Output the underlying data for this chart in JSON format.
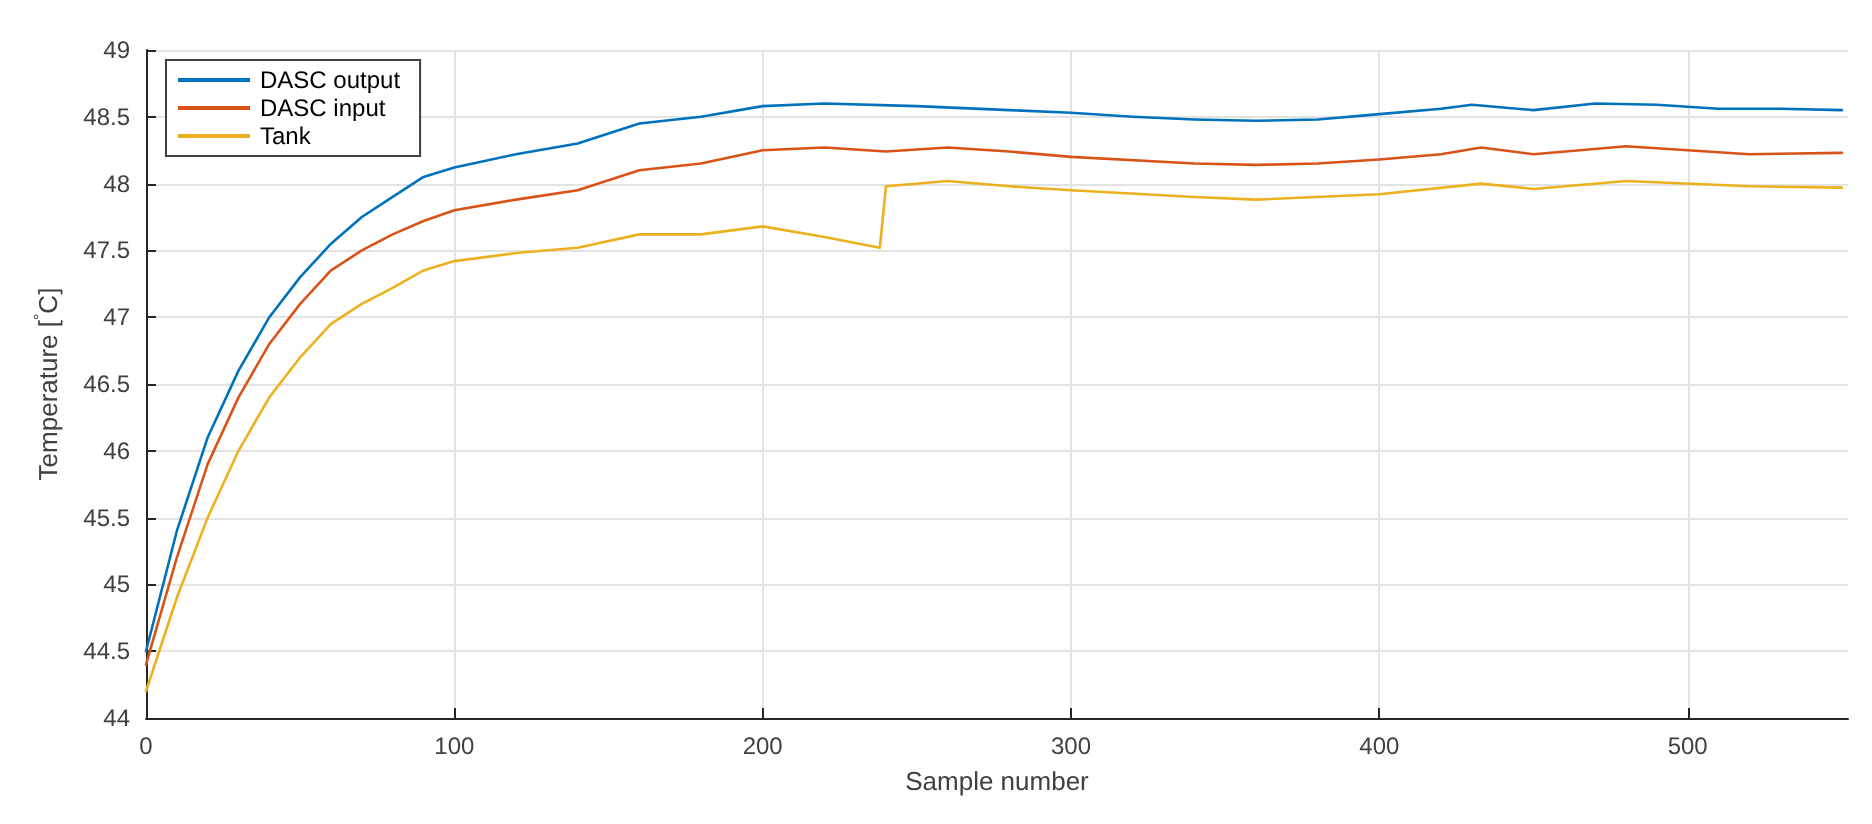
{
  "chart_data": {
    "type": "line",
    "xlabel": "Sample number",
    "ylabel": "Temperature [$^{°}$C]",
    "xlim": [
      0,
      552
    ],
    "xticks": [
      0,
      100,
      200,
      300,
      400,
      500
    ],
    "ylim": [
      44,
      49
    ],
    "yticks": [
      44,
      44.5,
      45,
      45.5,
      46,
      46.5,
      47,
      47.5,
      48,
      48.5,
      49
    ],
    "grid": true,
    "legend": "top left",
    "marker": "none",
    "line_style": "solid",
    "series": [
      {
        "name": "DASC output",
        "color": "#0072bd",
        "x": [
          0,
          10,
          20,
          30,
          40,
          50,
          60,
          70,
          80,
          90,
          100,
          120,
          140,
          160,
          180,
          200,
          220,
          250,
          280,
          300,
          320,
          340,
          360,
          380,
          400,
          420,
          430,
          450,
          470,
          490,
          510,
          530,
          550
        ],
        "values": [
          44.5,
          45.4,
          46.1,
          46.6,
          47.0,
          47.3,
          47.55,
          47.75,
          47.9,
          48.05,
          48.12,
          48.22,
          48.3,
          48.45,
          48.5,
          48.58,
          48.6,
          48.58,
          48.55,
          48.53,
          48.5,
          48.48,
          48.47,
          48.48,
          48.52,
          48.56,
          48.59,
          48.55,
          48.6,
          48.59,
          48.56,
          48.56,
          48.55
        ]
      },
      {
        "name": "DASC input",
        "color": "#d95319",
        "x": [
          0,
          10,
          20,
          30,
          40,
          50,
          60,
          70,
          80,
          90,
          100,
          120,
          140,
          160,
          180,
          200,
          220,
          240,
          260,
          280,
          300,
          340,
          360,
          380,
          400,
          420,
          433,
          450,
          480,
          500,
          520,
          550
        ],
        "values": [
          44.4,
          45.2,
          45.9,
          46.4,
          46.8,
          47.1,
          47.35,
          47.5,
          47.62,
          47.72,
          47.8,
          47.88,
          47.95,
          48.1,
          48.15,
          48.25,
          48.27,
          48.24,
          48.27,
          48.24,
          48.2,
          48.15,
          48.14,
          48.15,
          48.18,
          48.22,
          48.27,
          48.22,
          48.28,
          48.25,
          48.22,
          48.23
        ]
      },
      {
        "name": "Tank",
        "color": "#edb120",
        "x": [
          0,
          10,
          20,
          30,
          40,
          50,
          60,
          70,
          80,
          90,
          100,
          120,
          140,
          160,
          180,
          200,
          220,
          238,
          240,
          260,
          280,
          300,
          340,
          360,
          400,
          433,
          450,
          480,
          520,
          550
        ],
        "values": [
          44.2,
          44.9,
          45.5,
          46.0,
          46.4,
          46.7,
          46.95,
          47.1,
          47.22,
          47.35,
          47.42,
          47.48,
          47.52,
          47.62,
          47.62,
          47.68,
          47.6,
          47.52,
          47.98,
          48.02,
          47.98,
          47.95,
          47.9,
          47.88,
          47.92,
          48.0,
          47.96,
          48.02,
          47.98,
          47.97
        ]
      }
    ]
  }
}
